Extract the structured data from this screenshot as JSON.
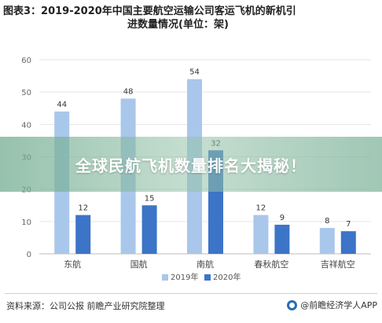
{
  "title_line1": "图表3：2019-2020年中国主要航空运输公司客运飞机的新机引",
  "title_line2": "进数量情况(单位：架)",
  "banner_text": "全球民航飞机数量排名大揭秘！",
  "source_text": "资料来源：公司公报 前瞻产业研究院整理",
  "brand_text": "@前瞻经济学人APP",
  "chart_data": {
    "type": "bar",
    "categories": [
      "东航",
      "国航",
      "南航",
      "春秋航空",
      "吉祥航空"
    ],
    "series": [
      {
        "name": "2019年",
        "values": [
          44,
          48,
          54,
          12,
          8
        ],
        "color": "#a9c7ea"
      },
      {
        "name": "2020年",
        "values": [
          12,
          15,
          32,
          9,
          7
        ],
        "color": "#3c74c7"
      }
    ],
    "ylim": [
      0,
      60
    ],
    "yticks": [
      0,
      10,
      20,
      30,
      40,
      50,
      60
    ],
    "grid": true,
    "legend": "bottom-center"
  }
}
